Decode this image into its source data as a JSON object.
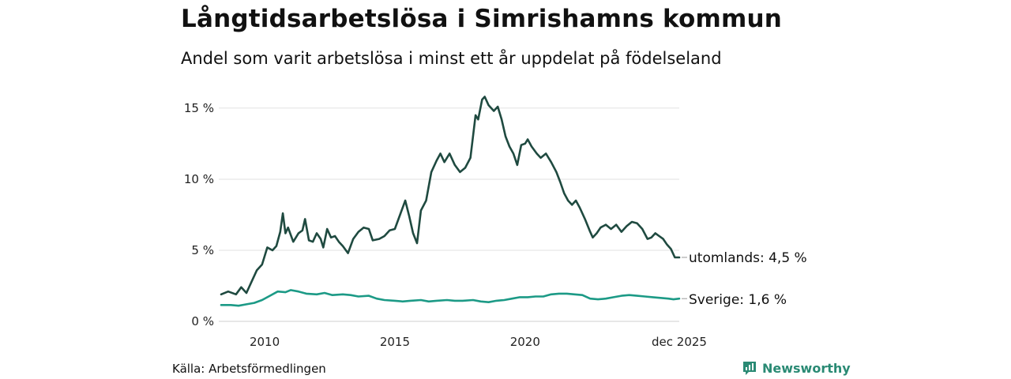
{
  "title": "Långtidsarbetslösa i Simrishamns kommun",
  "subtitle": "Andel som varit arbetslösa i minst ett år uppdelat på födelseland",
  "source": "Källa: Arbetsförmedlingen",
  "brand": {
    "name": "Newsworthy",
    "icon": "newsworthy-logo-icon",
    "color": "#2a8a74"
  },
  "chart_data": {
    "type": "line",
    "title": "Långtidsarbetslösa i Simrishamns kommun",
    "subtitle": "Andel som varit arbetslösa i minst ett år uppdelat på födelseland",
    "xlabel": "",
    "ylabel": "",
    "xlim": [
      2008.33,
      2025.92
    ],
    "ylim": [
      0,
      16
    ],
    "grid": true,
    "y_ticks": [
      0,
      5,
      10,
      15
    ],
    "y_tick_labels": [
      "0 %",
      "5 %",
      "10 %",
      "15 %"
    ],
    "x_ticks": [
      2010,
      2015,
      2020,
      2025.92
    ],
    "x_tick_labels": [
      "2010",
      "2015",
      "2020",
      "dec 2025"
    ],
    "series": [
      {
        "name": "utomlands",
        "label": "utomlands: 4,5 %",
        "color": "#1f4a40",
        "points": [
          [
            2008.33,
            1.9
          ],
          [
            2008.6,
            2.1
          ],
          [
            2008.9,
            1.9
          ],
          [
            2009.1,
            2.4
          ],
          [
            2009.3,
            2.0
          ],
          [
            2009.5,
            2.8
          ],
          [
            2009.7,
            3.6
          ],
          [
            2009.9,
            4.0
          ],
          [
            2010.0,
            4.6
          ],
          [
            2010.1,
            5.2
          ],
          [
            2010.3,
            5.0
          ],
          [
            2010.45,
            5.3
          ],
          [
            2010.6,
            6.3
          ],
          [
            2010.7,
            7.6
          ],
          [
            2010.8,
            6.2
          ],
          [
            2010.9,
            6.6
          ],
          [
            2011.1,
            5.6
          ],
          [
            2011.3,
            6.2
          ],
          [
            2011.45,
            6.4
          ],
          [
            2011.55,
            7.2
          ],
          [
            2011.7,
            5.7
          ],
          [
            2011.85,
            5.6
          ],
          [
            2012.0,
            6.2
          ],
          [
            2012.15,
            5.8
          ],
          [
            2012.25,
            5.2
          ],
          [
            2012.4,
            6.5
          ],
          [
            2012.55,
            5.9
          ],
          [
            2012.7,
            6.0
          ],
          [
            2012.85,
            5.6
          ],
          [
            2013.0,
            5.3
          ],
          [
            2013.2,
            4.8
          ],
          [
            2013.4,
            5.8
          ],
          [
            2013.6,
            6.3
          ],
          [
            2013.8,
            6.6
          ],
          [
            2014.0,
            6.5
          ],
          [
            2014.15,
            5.7
          ],
          [
            2014.4,
            5.8
          ],
          [
            2014.6,
            6.0
          ],
          [
            2014.8,
            6.4
          ],
          [
            2015.0,
            6.5
          ],
          [
            2015.2,
            7.5
          ],
          [
            2015.4,
            8.5
          ],
          [
            2015.55,
            7.4
          ],
          [
            2015.7,
            6.2
          ],
          [
            2015.85,
            5.5
          ],
          [
            2016.0,
            7.8
          ],
          [
            2016.2,
            8.5
          ],
          [
            2016.4,
            10.5
          ],
          [
            2016.6,
            11.3
          ],
          [
            2016.75,
            11.8
          ],
          [
            2016.9,
            11.2
          ],
          [
            2017.1,
            11.8
          ],
          [
            2017.3,
            11.0
          ],
          [
            2017.5,
            10.5
          ],
          [
            2017.7,
            10.8
          ],
          [
            2017.9,
            11.5
          ],
          [
            2018.1,
            14.5
          ],
          [
            2018.2,
            14.2
          ],
          [
            2018.35,
            15.6
          ],
          [
            2018.45,
            15.8
          ],
          [
            2018.6,
            15.2
          ],
          [
            2018.8,
            14.8
          ],
          [
            2018.95,
            15.1
          ],
          [
            2019.1,
            14.2
          ],
          [
            2019.25,
            13.0
          ],
          [
            2019.4,
            12.3
          ],
          [
            2019.55,
            11.8
          ],
          [
            2019.7,
            11.0
          ],
          [
            2019.85,
            12.4
          ],
          [
            2020.0,
            12.5
          ],
          [
            2020.1,
            12.8
          ],
          [
            2020.25,
            12.3
          ],
          [
            2020.45,
            11.8
          ],
          [
            2020.6,
            11.5
          ],
          [
            2020.8,
            11.8
          ],
          [
            2021.0,
            11.2
          ],
          [
            2021.2,
            10.5
          ],
          [
            2021.35,
            9.8
          ],
          [
            2021.5,
            9.0
          ],
          [
            2021.65,
            8.5
          ],
          [
            2021.8,
            8.2
          ],
          [
            2021.95,
            8.5
          ],
          [
            2022.1,
            8.0
          ],
          [
            2022.3,
            7.2
          ],
          [
            2022.5,
            6.3
          ],
          [
            2022.6,
            5.9
          ],
          [
            2022.75,
            6.2
          ],
          [
            2022.9,
            6.6
          ],
          [
            2023.1,
            6.8
          ],
          [
            2023.3,
            6.5
          ],
          [
            2023.5,
            6.8
          ],
          [
            2023.7,
            6.3
          ],
          [
            2023.9,
            6.7
          ],
          [
            2024.1,
            7.0
          ],
          [
            2024.3,
            6.9
          ],
          [
            2024.5,
            6.5
          ],
          [
            2024.7,
            5.8
          ],
          [
            2024.85,
            5.9
          ],
          [
            2025.0,
            6.2
          ],
          [
            2025.15,
            6.0
          ],
          [
            2025.3,
            5.8
          ],
          [
            2025.45,
            5.4
          ],
          [
            2025.6,
            5.1
          ],
          [
            2025.75,
            4.5
          ],
          [
            2025.92,
            4.5
          ]
        ]
      },
      {
        "name": "Sverige",
        "label": "Sverige: 1,6 %",
        "color": "#1c9a86",
        "points": [
          [
            2008.33,
            1.15
          ],
          [
            2008.7,
            1.15
          ],
          [
            2009.0,
            1.1
          ],
          [
            2009.3,
            1.2
          ],
          [
            2009.6,
            1.3
          ],
          [
            2009.9,
            1.5
          ],
          [
            2010.2,
            1.8
          ],
          [
            2010.5,
            2.1
          ],
          [
            2010.8,
            2.05
          ],
          [
            2011.0,
            2.2
          ],
          [
            2011.3,
            2.1
          ],
          [
            2011.6,
            1.95
          ],
          [
            2012.0,
            1.9
          ],
          [
            2012.3,
            2.0
          ],
          [
            2012.6,
            1.85
          ],
          [
            2013.0,
            1.9
          ],
          [
            2013.3,
            1.85
          ],
          [
            2013.6,
            1.75
          ],
          [
            2014.0,
            1.8
          ],
          [
            2014.3,
            1.6
          ],
          [
            2014.6,
            1.5
          ],
          [
            2015.0,
            1.45
          ],
          [
            2015.3,
            1.4
          ],
          [
            2015.6,
            1.45
          ],
          [
            2016.0,
            1.5
          ],
          [
            2016.3,
            1.4
          ],
          [
            2016.6,
            1.45
          ],
          [
            2017.0,
            1.5
          ],
          [
            2017.3,
            1.45
          ],
          [
            2017.6,
            1.45
          ],
          [
            2018.0,
            1.5
          ],
          [
            2018.3,
            1.4
          ],
          [
            2018.6,
            1.35
          ],
          [
            2018.9,
            1.45
          ],
          [
            2019.2,
            1.5
          ],
          [
            2019.5,
            1.6
          ],
          [
            2019.8,
            1.7
          ],
          [
            2020.1,
            1.7
          ],
          [
            2020.4,
            1.75
          ],
          [
            2020.7,
            1.75
          ],
          [
            2021.0,
            1.9
          ],
          [
            2021.3,
            1.95
          ],
          [
            2021.6,
            1.95
          ],
          [
            2021.9,
            1.9
          ],
          [
            2022.2,
            1.85
          ],
          [
            2022.5,
            1.6
          ],
          [
            2022.8,
            1.55
          ],
          [
            2023.1,
            1.6
          ],
          [
            2023.4,
            1.7
          ],
          [
            2023.7,
            1.8
          ],
          [
            2024.0,
            1.85
          ],
          [
            2024.3,
            1.8
          ],
          [
            2024.6,
            1.75
          ],
          [
            2024.9,
            1.7
          ],
          [
            2025.2,
            1.65
          ],
          [
            2025.5,
            1.6
          ],
          [
            2025.7,
            1.55
          ],
          [
            2025.92,
            1.6
          ]
        ]
      }
    ]
  }
}
